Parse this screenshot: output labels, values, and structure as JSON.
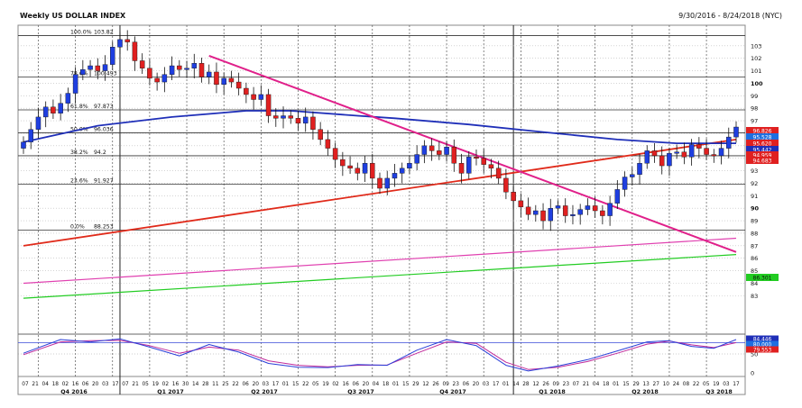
{
  "header": {
    "title": "Weekly US DOLLAR INDEX",
    "date_range": "9/30/2016 - 8/24/2018 (NYC)"
  },
  "colors": {
    "bull": "#1f3fe0",
    "bear": "#e02020",
    "ma_fast": "#1f2fb8",
    "ma_slow": "#e02a1a",
    "trendline": "#e0208a",
    "channel_pink": "#e040b0",
    "channel_green": "#22cc22",
    "stoch_k": "#2a3fd8",
    "stoch_d": "#c02a9a"
  },
  "chart_data": [
    {
      "type": "candlestick",
      "ylim": [
        80,
        104.5
      ],
      "y_ticks": [
        "103",
        "102",
        "101",
        "100",
        "99",
        "98",
        "97",
        "96",
        "95",
        "94",
        "93",
        "92",
        "91",
        "90",
        "89",
        "88",
        "87",
        "86",
        "85",
        "84",
        "83"
      ],
      "fib_levels": [
        {
          "label": "100.0%",
          "value": 103.82
        },
        {
          "label": "78.6%",
          "value": 100.493
        },
        {
          "label": "61.8%",
          "value": 97.873
        },
        {
          "label": "50.0%",
          "value": 96.036
        },
        {
          "label": "38.2%",
          "value": 94.2
        },
        {
          "label": "23.6%",
          "value": 91.927
        },
        {
          "label": "0.0%",
          "value": 88.253
        }
      ],
      "close": [
        95.3,
        96.3,
        97.3,
        98.1,
        97.6,
        98.4,
        99.2,
        100.7,
        101.1,
        101.4,
        101.0,
        101.5,
        102.9,
        103.5,
        103.3,
        101.8,
        101.2,
        100.4,
        100.1,
        100.7,
        101.4,
        101.1,
        101.2,
        101.6,
        100.5,
        100.9,
        99.9,
        100.4,
        100.1,
        99.6,
        99.1,
        98.7,
        99.1,
        97.4,
        97.2,
        97.4,
        97.2,
        96.8,
        97.3,
        96.3,
        95.5,
        94.8,
        93.9,
        93.4,
        93.2,
        92.8,
        93.6,
        92.4,
        91.6,
        92.4,
        92.8,
        93.2,
        93.6,
        94.3,
        95.0,
        94.6,
        94.3,
        94.9,
        93.6,
        92.8,
        94.1,
        94.0,
        93.5,
        93.2,
        92.4,
        91.3,
        90.6,
        90.1,
        89.5,
        89.8,
        89.0,
        90.0,
        90.2,
        89.4,
        89.5,
        89.9,
        90.2,
        89.8,
        89.4,
        90.4,
        91.5,
        92.5,
        92.7,
        93.6,
        94.6,
        94.2,
        93.4,
        94.4,
        94.5,
        94.1,
        95.1,
        94.8,
        94.3,
        94.2,
        94.8,
        95.7,
        96.5
      ],
      "ma_fast": {
        "x": [
          0,
          10,
          20,
          30,
          36,
          45,
          50,
          60,
          70,
          80,
          88,
          96
        ],
        "values": [
          95.3,
          96.6,
          97.3,
          97.8,
          97.8,
          97.4,
          97.2,
          96.7,
          96.1,
          95.5,
          95.2,
          95.2
        ]
      },
      "ma_slow": {
        "x": [
          0,
          96
        ],
        "values": [
          87.0,
          95.5
        ]
      },
      "trendline": {
        "x": [
          25,
          96
        ],
        "values": [
          102.2,
          86.5
        ]
      },
      "channel_pink": {
        "x": [
          0,
          96
        ],
        "values": [
          84.0,
          87.6
        ]
      },
      "channel_green": {
        "x": [
          0,
          96
        ],
        "values": [
          82.8,
          86.3
        ]
      },
      "badges": [
        "96.826",
        "95.528",
        "95.620",
        "95.442",
        "94.959",
        "94.683",
        "86.301"
      ]
    },
    {
      "type": "line",
      "ylim": [
        0,
        100
      ],
      "y_ticks": [
        "50",
        "0"
      ],
      "stoch_k": {
        "x": [
          0,
          5,
          9,
          13,
          17,
          21,
          25,
          29,
          33,
          37,
          41,
          45,
          49,
          53,
          57,
          61,
          65,
          68,
          72,
          76,
          80,
          84,
          87,
          90,
          93,
          96
        ],
        "values": [
          52,
          88,
          82,
          90,
          68,
          45,
          75,
          55,
          25,
          15,
          14,
          22,
          20,
          60,
          88,
          72,
          20,
          5,
          18,
          35,
          58,
          82,
          85,
          70,
          65,
          88
        ]
      },
      "stoch_d": {
        "x": [
          0,
          5,
          9,
          13,
          17,
          21,
          25,
          29,
          33,
          37,
          41,
          45,
          49,
          53,
          57,
          61,
          65,
          68,
          72,
          76,
          80,
          84,
          87,
          90,
          93,
          96
        ],
        "values": [
          48,
          82,
          85,
          86,
          72,
          52,
          68,
          60,
          32,
          20,
          16,
          20,
          21,
          52,
          82,
          78,
          28,
          9,
          15,
          30,
          52,
          76,
          84,
          74,
          67,
          80
        ]
      },
      "badges": [
        "84.446",
        "80.000",
        "79.553"
      ]
    }
  ],
  "axis": {
    "x_day_labels": [
      "07",
      "21",
      "04",
      "18",
      "02",
      "16",
      "06",
      "20",
      "03",
      "17",
      "07",
      "21",
      "05",
      "19",
      "02",
      "16",
      "30",
      "14",
      "28",
      "11",
      "25",
      "08",
      "22",
      "06",
      "20",
      "03",
      "17",
      "01",
      "15",
      "29",
      "12",
      "26",
      "09",
      "23",
      "07",
      "21",
      "04",
      "18",
      "01",
      "15",
      "29",
      "13",
      "27",
      "10",
      "24",
      "08",
      "22",
      "05",
      "19",
      "02",
      "16",
      "30",
      "14",
      "28",
      "11",
      "25",
      "09",
      "23",
      "06",
      "20",
      "04",
      "18",
      "02",
      "16",
      "30",
      "13",
      "27",
      "10",
      "24",
      "08",
      "22",
      "05",
      "19",
      "03",
      "17",
      "31",
      "14",
      "28",
      "12",
      "26",
      "09",
      "23",
      "07",
      "21",
      "04",
      "18",
      "01",
      "15",
      "29",
      "13",
      "27",
      "10",
      "24",
      "08",
      "22",
      "05",
      "19",
      "03",
      "17",
      "31"
    ],
    "x_day_labels_shown": [
      "07",
      "21",
      "04",
      "18",
      "02",
      "16",
      "06",
      "20",
      "03",
      "17",
      "07",
      "21",
      "05",
      "19",
      "02",
      "16",
      "30",
      "14",
      "28",
      "11",
      "25",
      "22",
      "06",
      "20",
      "03",
      "17",
      "01",
      "15",
      "22",
      "05",
      "19",
      "02",
      "16",
      "06",
      "20",
      "04",
      "18",
      "01",
      "15",
      "29",
      "12",
      "26",
      "09",
      "23",
      "06",
      "20",
      "03",
      "17",
      "01",
      "14",
      "28",
      "12",
      "26",
      "09",
      "23",
      "07",
      "21",
      "04",
      "18",
      "01",
      "15",
      "29",
      "13",
      "27",
      "10",
      "24",
      "08",
      "22",
      "05",
      "19",
      "03",
      "17"
    ],
    "quarters": [
      "Q4 2016",
      "Q1 2017",
      "Q2 2017",
      "Q3 2017",
      "Q4 2017",
      "Q1 2018",
      "Q2 2018",
      "Q3 2018"
    ]
  }
}
